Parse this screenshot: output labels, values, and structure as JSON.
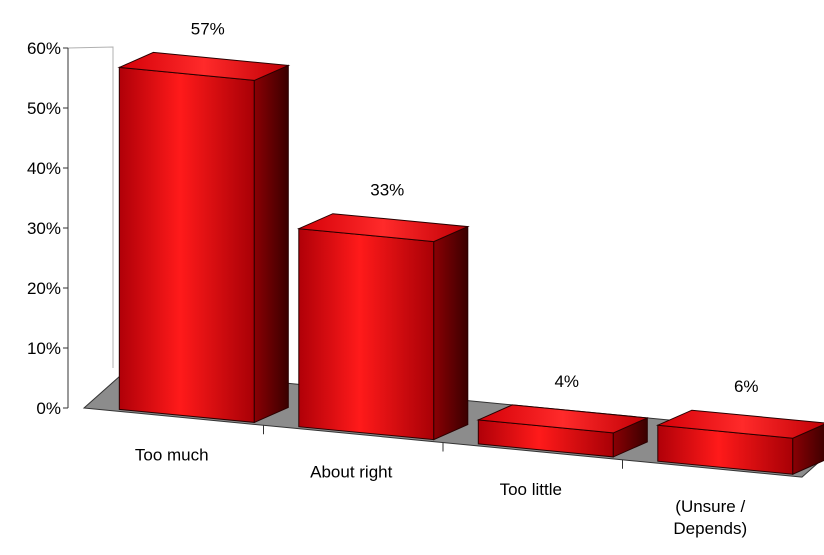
{
  "chart_data": {
    "type": "bar",
    "title": "",
    "xlabel": "",
    "ylabel": "",
    "categories": [
      "Too much",
      "About right",
      "Too little",
      "(Unsure / Depends)"
    ],
    "category_lines": [
      [
        "Too much"
      ],
      [
        "About right"
      ],
      [
        "Too little"
      ],
      [
        "(Unsure /",
        "Depends)"
      ]
    ],
    "values": [
      57,
      33,
      4,
      6
    ],
    "data_labels": [
      "57%",
      "33%",
      "4%",
      "6%"
    ],
    "ylim": [
      0,
      60
    ],
    "yticks": [
      0,
      10,
      20,
      30,
      40,
      50,
      60
    ],
    "ytick_labels": [
      "0%",
      "10%",
      "20%",
      "30%",
      "40%",
      "50%",
      "60%"
    ],
    "style": "3d-perspective",
    "bar_color": "#e0000a",
    "floor_color": "#8c8c8c",
    "legend": "none",
    "grid": false
  }
}
